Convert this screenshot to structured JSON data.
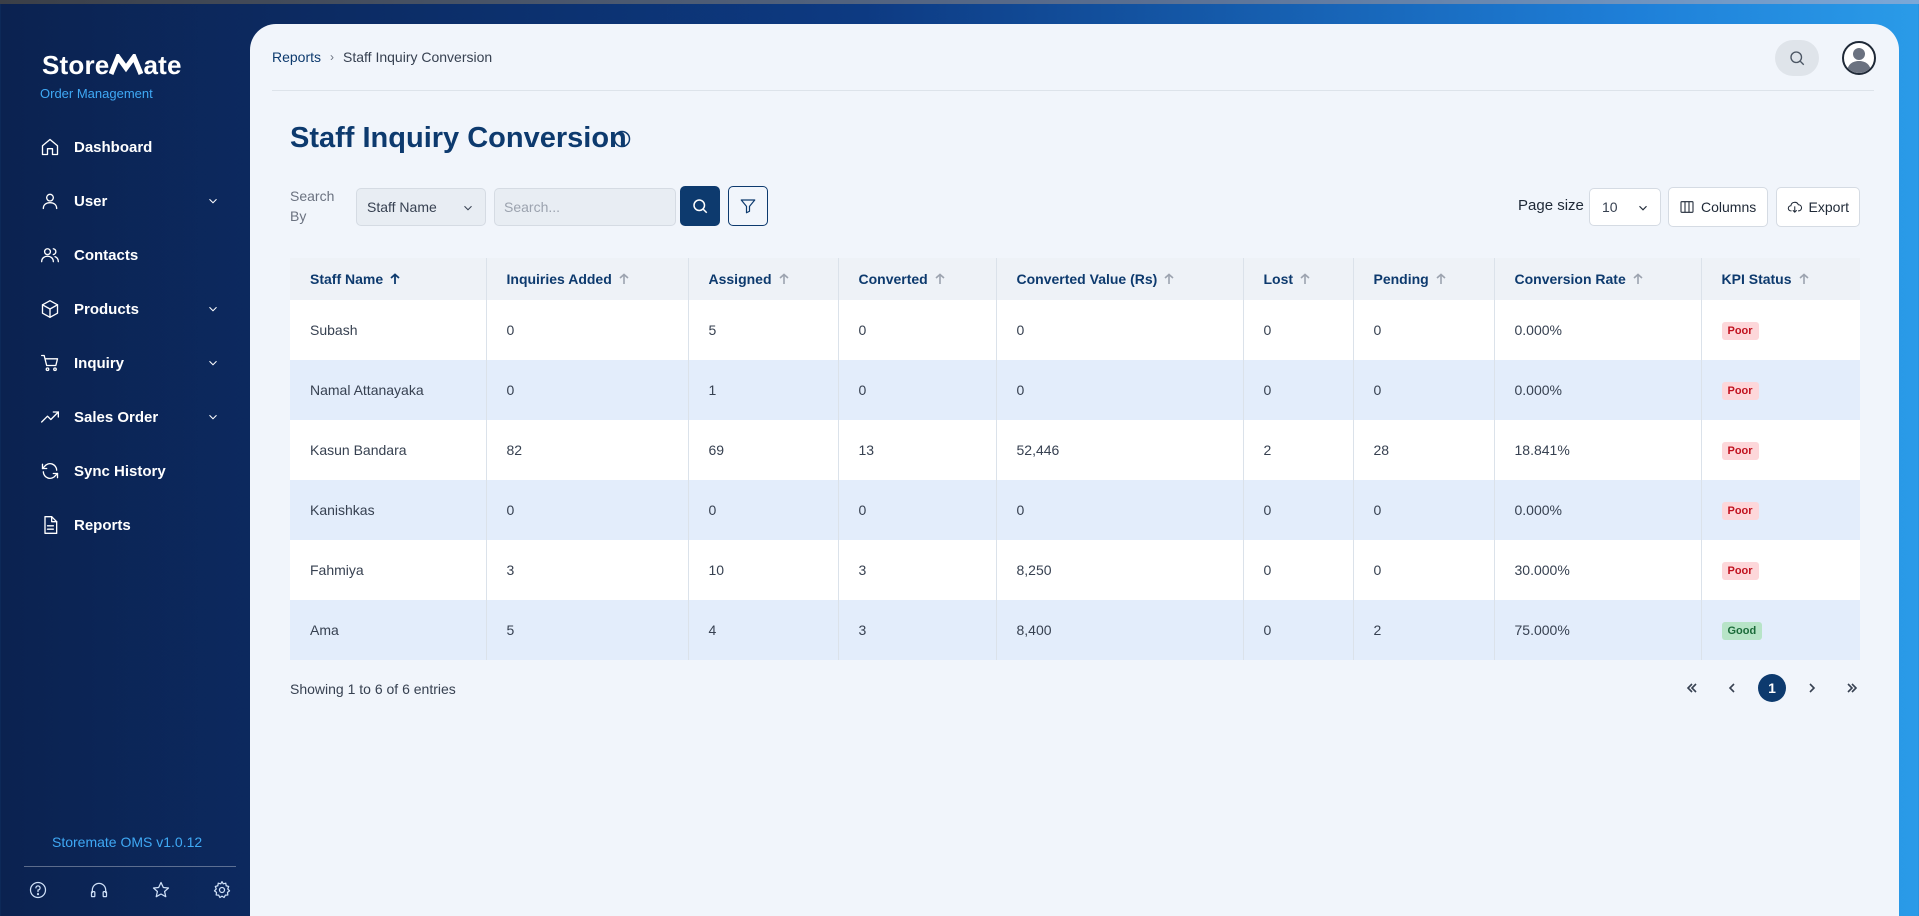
{
  "brand": {
    "name_part1": "Store",
    "name_part2": "ate",
    "subtitle": "Order Management"
  },
  "sidebar": {
    "items": [
      {
        "label": "Dashboard",
        "icon": "home-icon",
        "has_submenu": false
      },
      {
        "label": "User",
        "icon": "user-icon",
        "has_submenu": true
      },
      {
        "label": "Contacts",
        "icon": "contacts-icon",
        "has_submenu": false
      },
      {
        "label": "Products",
        "icon": "box-icon",
        "has_submenu": true
      },
      {
        "label": "Inquiry",
        "icon": "cart-icon",
        "has_submenu": true
      },
      {
        "label": "Sales Order",
        "icon": "trending-up-icon",
        "has_submenu": true
      },
      {
        "label": "Sync History",
        "icon": "sync-icon",
        "has_submenu": false
      },
      {
        "label": "Reports",
        "icon": "file-icon",
        "has_submenu": false
      }
    ],
    "version": "Storemate OMS v1.0.12",
    "bottom_icons": [
      "help-icon",
      "headset-icon",
      "star-icon",
      "settings-icon"
    ]
  },
  "breadcrumb": {
    "parent": "Reports",
    "current": "Staff Inquiry Conversion"
  },
  "page": {
    "title": "Staff Inquiry Conversion"
  },
  "filters": {
    "search_by_label": "Search By",
    "search_by_value": "Staff Name",
    "search_placeholder": "Search...",
    "page_size_label": "Page size",
    "page_size_value": "10",
    "columns_label": "Columns",
    "export_label": "Export"
  },
  "table": {
    "headers": [
      "Staff Name",
      "Inquiries Added",
      "Assigned",
      "Converted",
      "Converted Value (Rs)",
      "Lost",
      "Pending",
      "Conversion Rate",
      "KPI Status"
    ],
    "rows": [
      [
        "Subash",
        "0",
        "5",
        "0",
        "0",
        "0",
        "0",
        "0.000%",
        "Poor"
      ],
      [
        "Namal Attanayaka",
        "0",
        "1",
        "0",
        "0",
        "0",
        "0",
        "0.000%",
        "Poor"
      ],
      [
        "Kasun Bandara",
        "82",
        "69",
        "13",
        "52,446",
        "2",
        "28",
        "18.841%",
        "Poor"
      ],
      [
        "Kanishkas",
        "0",
        "0",
        "0",
        "0",
        "0",
        "0",
        "0.000%",
        "Poor"
      ],
      [
        "Fahmiya",
        "3",
        "10",
        "3",
        "8,250",
        "0",
        "0",
        "30.000%",
        "Poor"
      ],
      [
        "Ama",
        "5",
        "4",
        "3",
        "8,400",
        "0",
        "2",
        "75.000%",
        "Good"
      ]
    ]
  },
  "footer": {
    "showing_text": "Showing 1 to 6 of 6  entries",
    "current_page": "1"
  },
  "colors": {
    "primary": "#0d3a6e",
    "accent": "#3fa9f5",
    "poor": "#c1121f",
    "good": "#1b6b3a"
  }
}
